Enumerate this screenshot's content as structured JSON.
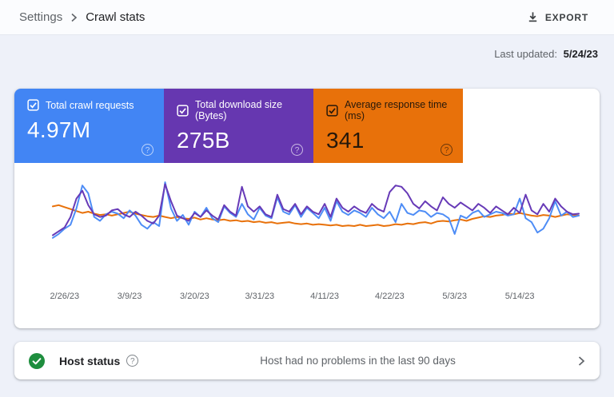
{
  "header": {
    "breadcrumb": [
      {
        "label": "Settings"
      },
      {
        "label": "Crawl stats"
      }
    ],
    "export_label": "EXPORT"
  },
  "meta": {
    "last_updated_label": "Last updated:",
    "last_updated_value": "5/24/23"
  },
  "cards": [
    {
      "label": "Total crawl requests",
      "value": "4.97M",
      "checked": true,
      "color": "#4285f4",
      "text_color": "#ffffff"
    },
    {
      "label": "Total download size (Bytes)",
      "value": "275B",
      "checked": true,
      "color": "#6637b0",
      "text_color": "#ffffff"
    },
    {
      "label": "Average response time (ms)",
      "value": "341",
      "checked": true,
      "color": "#e8710a",
      "text_color": "#26180a"
    }
  ],
  "chart_data": {
    "type": "line",
    "title": "",
    "xlabel": "",
    "ylabel": "",
    "ylim": [
      0,
      100
    ],
    "grid": false,
    "y_axis_visible": false,
    "values_note": "relative heights 0-100; chart shows no y-axis scale",
    "x_labels": [
      "2/26/23",
      "3/9/23",
      "3/20/23",
      "3/31/23",
      "4/11/23",
      "4/22/23",
      "5/3/23",
      "5/14/23"
    ],
    "x_label_day_indices": [
      2,
      13,
      24,
      35,
      46,
      57,
      68,
      79
    ],
    "draw_order": [
      2,
      0,
      1
    ],
    "series": [
      {
        "name": "Total crawl requests",
        "color": "#4e8df6",
        "values": [
          10,
          16,
          24,
          30,
          55,
          90,
          78,
          42,
          36,
          46,
          50,
          47,
          40,
          52,
          44,
          30,
          24,
          34,
          28,
          95,
          55,
          36,
          45,
          30,
          50,
          42,
          56,
          40,
          34,
          58,
          48,
          42,
          62,
          46,
          38,
          56,
          44,
          40,
          72,
          50,
          46,
          60,
          42,
          56,
          48,
          40,
          56,
          36,
          66,
          50,
          45,
          52,
          48,
          42,
          56,
          46,
          40,
          50,
          34,
          62,
          48,
          45,
          52,
          50,
          42,
          48,
          46,
          40,
          16,
          44,
          40,
          48,
          52,
          42,
          46,
          50,
          48,
          44,
          46,
          70,
          40,
          34,
          18,
          24,
          40,
          66,
          44,
          50,
          42,
          44
        ]
      },
      {
        "name": "Total download size (Bytes)",
        "color": "#673ab7",
        "values": [
          14,
          20,
          26,
          42,
          70,
          82,
          60,
          46,
          42,
          44,
          52,
          54,
          46,
          42,
          50,
          44,
          36,
          32,
          44,
          92,
          66,
          44,
          40,
          36,
          48,
          42,
          52,
          44,
          38,
          60,
          50,
          44,
          88,
          58,
          50,
          58,
          46,
          42,
          76,
          54,
          50,
          62,
          46,
          58,
          50,
          46,
          62,
          42,
          70,
          56,
          50,
          58,
          52,
          48,
          62,
          54,
          50,
          80,
          90,
          88,
          78,
          62,
          55,
          66,
          58,
          52,
          72,
          62,
          56,
          64,
          58,
          52,
          62,
          56,
          48,
          58,
          52,
          46,
          56,
          48,
          76,
          52,
          46,
          62,
          50,
          70,
          58,
          50,
          46,
          47
        ]
      },
      {
        "name": "Average response time (ms)",
        "color": "#e8710a",
        "values": [
          58,
          60,
          57,
          54,
          51,
          48,
          50,
          47,
          45,
          46,
          44,
          46,
          48,
          50,
          47,
          45,
          43,
          42,
          44,
          42,
          40,
          42,
          40,
          39,
          41,
          38,
          40,
          38,
          37,
          38,
          36,
          37,
          35,
          36,
          34,
          35,
          33,
          34,
          32,
          33,
          34,
          32,
          31,
          32,
          30,
          31,
          30,
          29,
          30,
          28,
          29,
          28,
          30,
          28,
          29,
          30,
          28,
          29,
          31,
          30,
          32,
          31,
          33,
          34,
          32,
          35,
          36,
          35,
          37,
          38,
          36,
          39,
          41,
          43,
          42,
          44,
          45,
          47,
          46,
          48,
          46,
          44,
          43,
          45,
          44,
          42,
          44,
          46,
          45,
          44
        ]
      }
    ]
  },
  "host_status": {
    "title": "Host status",
    "message": "Host had no problems in the last 90 days",
    "status": "ok",
    "status_color": "#1e8e3e"
  }
}
